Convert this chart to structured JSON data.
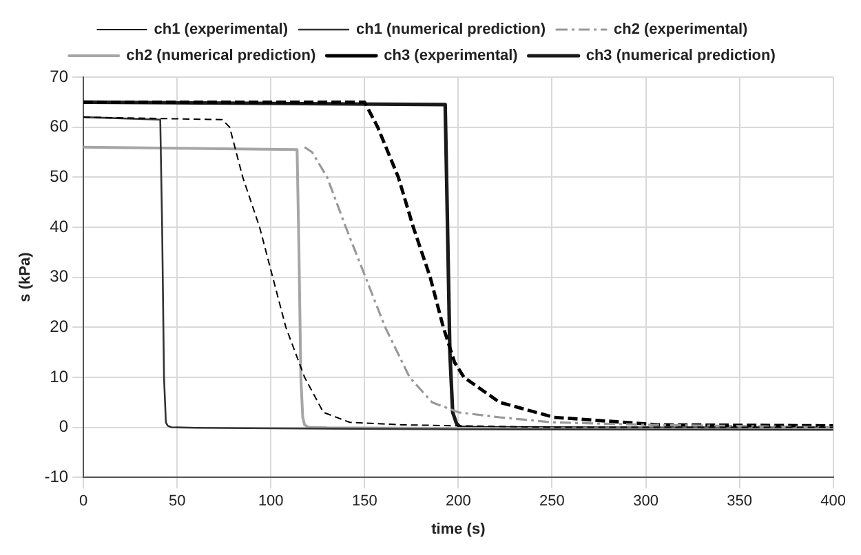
{
  "chart_data": {
    "type": "line",
    "xlabel": "time (s)",
    "ylabel": "s (kPa)",
    "xlim": [
      0,
      400
    ],
    "xticks": [
      0,
      50,
      100,
      150,
      200,
      250,
      300,
      350,
      400
    ],
    "ylim": [
      -10,
      70
    ],
    "yticks": [
      -10,
      0,
      10,
      20,
      30,
      40,
      50,
      60,
      70
    ],
    "grid": true,
    "legend": "top",
    "marker": "none",
    "series": [
      {
        "name": "ch1 (experimental)",
        "color": "#000000",
        "line_style": "dashed",
        "x": [
          0,
          74,
          78,
          85,
          94,
          108,
          118,
          128,
          142,
          170,
          200,
          250,
          300,
          400
        ],
        "values": [
          62,
          61.5,
          60,
          50,
          40,
          20,
          10,
          3,
          1,
          0.5,
          0.3,
          0,
          0,
          0
        ]
      },
      {
        "name": "ch1 (numerical prediction)",
        "color": "#333333",
        "line_style": "solid",
        "x": [
          0,
          41,
          42,
          43,
          44,
          45,
          47,
          60,
          100,
          200,
          400
        ],
        "values": [
          62,
          61.5,
          40,
          10,
          1,
          0.3,
          0,
          -0.1,
          -0.2,
          -0.4,
          -0.5
        ]
      },
      {
        "name": "ch2 (experimental)",
        "color": "#999999",
        "line_style": "dashed",
        "x": [
          118,
          122,
          130,
          140,
          161,
          174,
          186,
          200,
          222,
          250,
          300,
          400
        ],
        "values": [
          56,
          55,
          50,
          40,
          20,
          10,
          5,
          3,
          2,
          1,
          0.5,
          0
        ]
      },
      {
        "name": "ch2 (numerical prediction)",
        "color": "#a6a6a6",
        "line_style": "solid",
        "x": [
          0,
          114,
          115,
          116,
          117,
          118,
          120,
          130,
          200,
          300,
          400
        ],
        "values": [
          56,
          55.5,
          35,
          10,
          2,
          0.5,
          0,
          -0.1,
          -0.2,
          -0.3,
          -0.3
        ]
      },
      {
        "name": "ch3 (experimental)",
        "color": "#000000",
        "line_style": "dashed",
        "x": [
          0,
          150,
          157,
          168,
          176,
          185,
          192,
          198,
          203,
          222,
          251,
          307,
          400
        ],
        "values": [
          65,
          65,
          60,
          50,
          40,
          30,
          20,
          13,
          10,
          5,
          2,
          0.5,
          0.3
        ]
      },
      {
        "name": "ch3 (numerical prediction)",
        "color": "#1a1a1a",
        "line_style": "solid",
        "x": [
          0,
          193,
          194,
          195.5,
          197,
          199,
          201,
          210,
          300,
          400
        ],
        "values": [
          65,
          64.5,
          45,
          15,
          3,
          0.8,
          0,
          -0.1,
          -0.2,
          -0.2
        ]
      }
    ]
  }
}
